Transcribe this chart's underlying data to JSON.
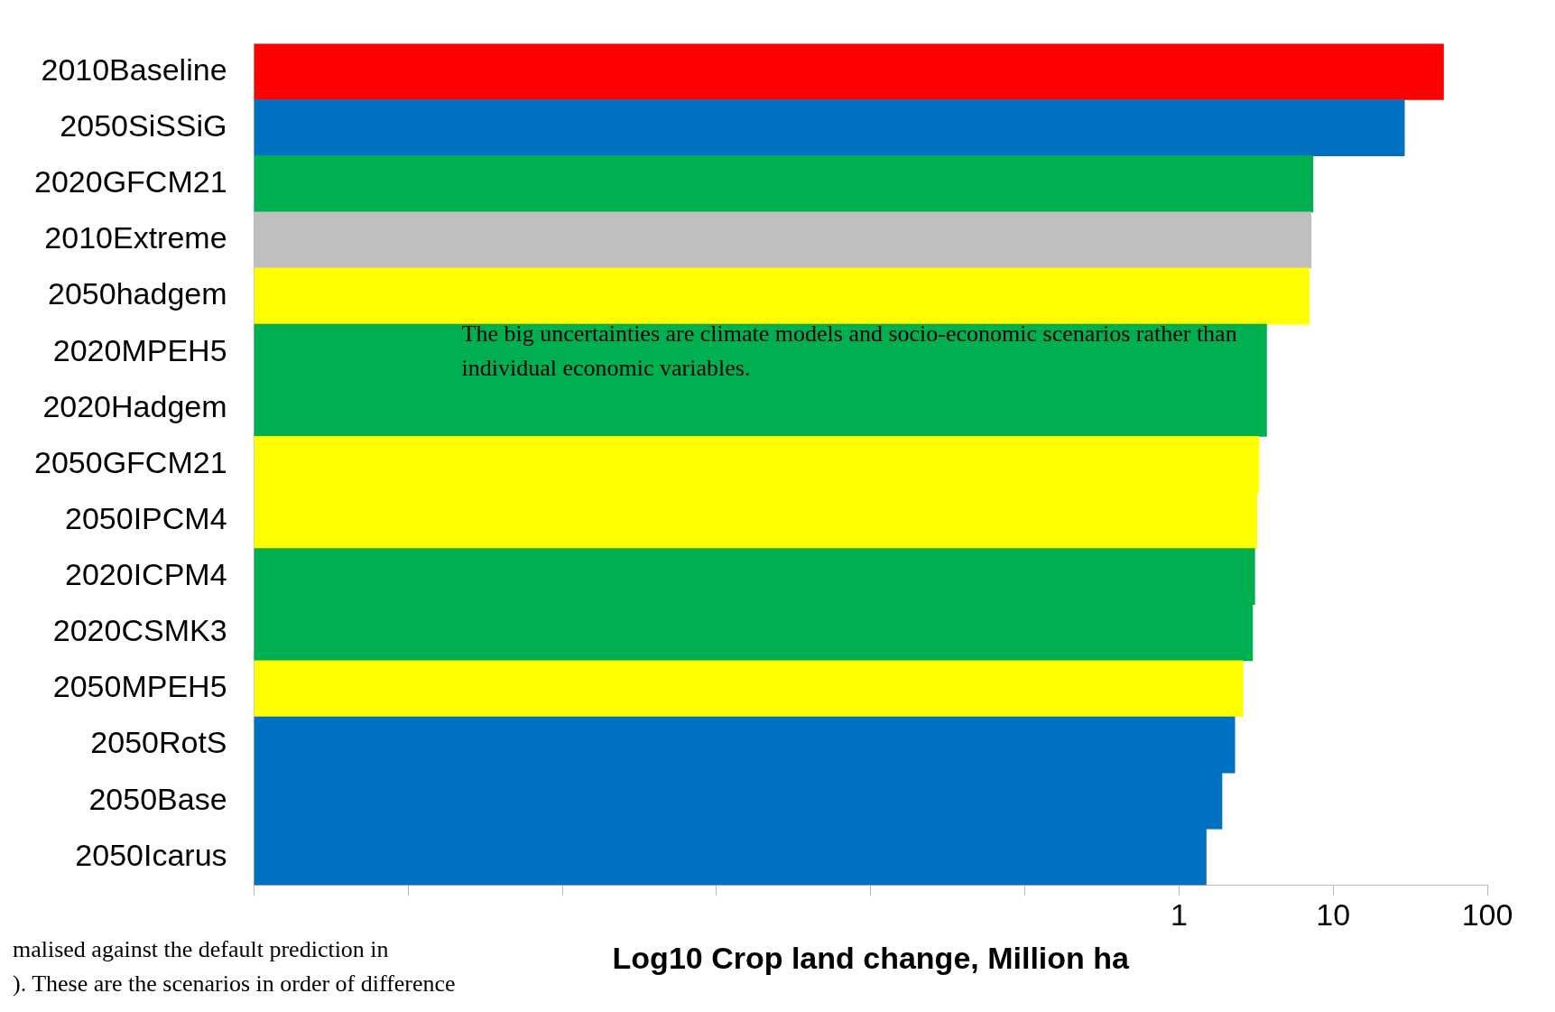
{
  "chart_data": {
    "type": "bar",
    "orientation": "horizontal",
    "log": "x",
    "categories": [
      "2010Baseline",
      "2050SiSSiG",
      "2020GFCM21",
      "2010Extreme",
      "2050hadgem",
      "2020MPEH5",
      "2020Hadgem",
      "2050GFCM21",
      "2050IPCM4",
      "2020ICPM4",
      "2020CSMK3",
      "2050MPEH5",
      "2050RotS",
      "2050Base",
      "2050Icarus"
    ],
    "values": [
      52,
      29,
      7.4,
      7.2,
      7.0,
      3.7,
      3.7,
      3.3,
      3.2,
      3.1,
      3.0,
      2.6,
      2.3,
      1.9,
      1.5
    ],
    "colors": [
      "#ff0000",
      "#0070c0",
      "#00b050",
      "#bfbfbf",
      "#ffff00",
      "#00b050",
      "#00b050",
      "#ffff00",
      "#ffff00",
      "#00b050",
      "#00b050",
      "#ffff00",
      "#0070c0",
      "#0070c0",
      "#0070c0"
    ],
    "xlim": [
      1e-06,
      100
    ],
    "xticks": [
      {
        "value": 1e-06,
        "label": null
      },
      {
        "value": 1e-05,
        "label": null
      },
      {
        "value": 0.0001,
        "label": null
      },
      {
        "value": 0.001,
        "label": null
      },
      {
        "value": 0.01,
        "label": null
      },
      {
        "value": 0.1,
        "label": null
      },
      1,
      10,
      100
    ],
    "xlabel": "Log10 Crop land change, Million ha",
    "grid": false,
    "legend": false,
    "annotations": [
      "The big uncertainties are climate models and socio-economic scenarios rather than individual economic variables.",
      "malised against the default prediction in",
      "). These are the scenarios in order of difference"
    ]
  }
}
